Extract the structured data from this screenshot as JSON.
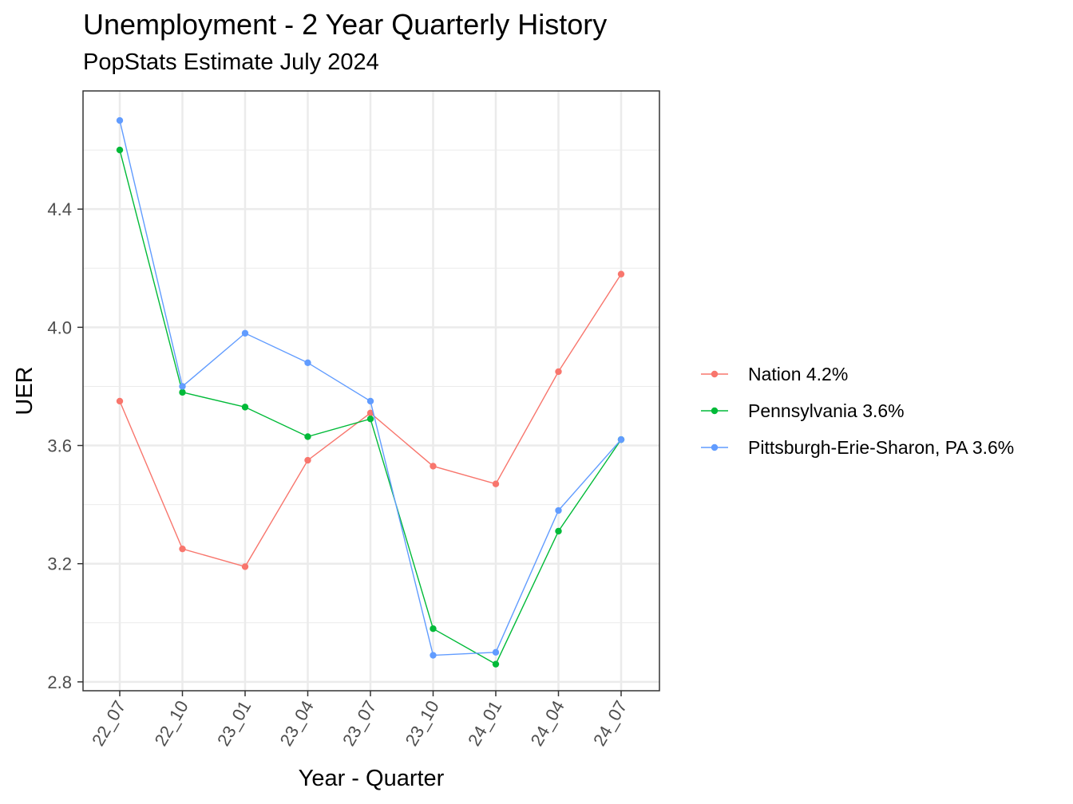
{
  "chart_data": {
    "type": "line",
    "title": "Unemployment - 2 Year Quarterly History",
    "subtitle": "PopStats Estimate July 2024",
    "xlabel": "Year - Quarter",
    "ylabel": "UER",
    "categories": [
      "22_07",
      "22_10",
      "23_01",
      "23_04",
      "23_07",
      "23_10",
      "24_01",
      "24_04",
      "24_07"
    ],
    "yticks": [
      "2.8",
      "3.2",
      "3.6",
      "4.0",
      "4.4"
    ],
    "ylim": [
      2.77,
      4.8
    ],
    "grid": true,
    "legend_position": "right",
    "series": [
      {
        "name": "Nation 4.2%",
        "color": "#F8766D",
        "values": [
          3.75,
          3.25,
          3.19,
          3.55,
          3.71,
          3.53,
          3.47,
          3.85,
          4.18
        ]
      },
      {
        "name": "Pennsylvania 3.6%",
        "color": "#00BA38",
        "values": [
          4.6,
          3.78,
          3.73,
          3.63,
          3.69,
          2.98,
          2.86,
          3.31,
          3.62
        ]
      },
      {
        "name": "Pittsburgh-Erie-Sharon, PA 3.6%",
        "color": "#619CFF",
        "values": [
          4.7,
          3.8,
          3.98,
          3.88,
          3.75,
          2.89,
          2.9,
          3.38,
          3.62
        ]
      }
    ]
  }
}
